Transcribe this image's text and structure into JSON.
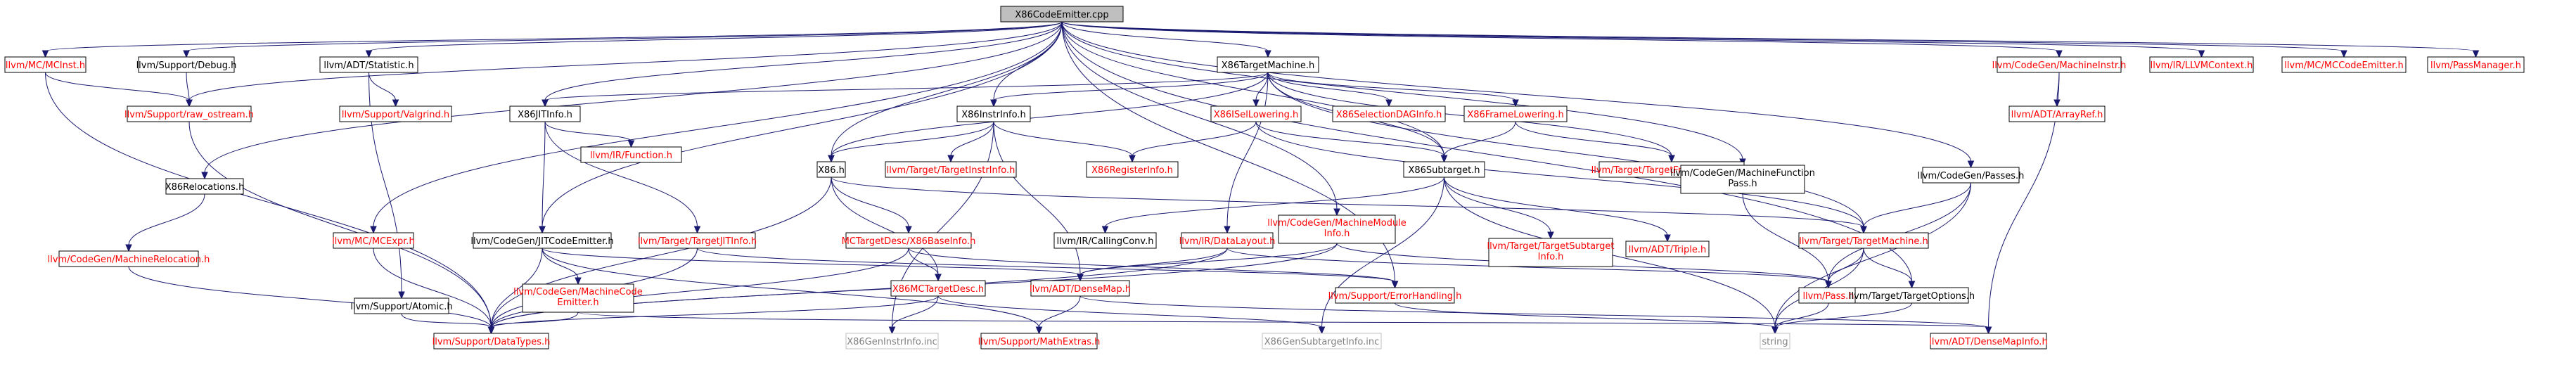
{
  "colors": {
    "edge": "#191970",
    "link_text": "#ff0000",
    "plain_text": "#000000",
    "disabled_text": "#808080",
    "root_fill": "#bfbfbf",
    "box_fill": "#ffffff",
    "box_stroke_normal": "#000000",
    "box_stroke_missing": "#bfbfbf"
  },
  "nodes": {
    "root": "X86CodeEmitter.cpp",
    "mcinst": "llvm/MC/MCInst.h",
    "debug": "llvm/Support/Debug.h",
    "statistic": "llvm/ADT/Statistic.h",
    "relocs": "X86Relocations.h",
    "jitinfo": "X86JITInfo.h",
    "tm": "X86TargetMachine.h",
    "instrinfo": "X86InstrInfo.h",
    "isel": "X86ISelLowering.h",
    "seldag": "X86SelectionDAGInfo.h",
    "framelow": "X86FrameLowering.h",
    "ostream": "llvm/Support/raw_ostream.h",
    "valgrind": "llvm/Support/Valgrind.h",
    "function": "llvm/IR/Function.h",
    "x86h": "X86.h",
    "targetinstrinfo": "llvm/Target/TargetInstrInfo.h",
    "reginfo": "X86RegisterInfo.h",
    "subtarget": "X86Subtarget.h",
    "tgtframe": "llvm/Target/TargetFrameLowering.h",
    "mfpass_l1": "llvm/CodeGen/MachineFunction",
    "mfpass_l2": "Pass.h",
    "passes": "llvm/CodeGen/Passes.h",
    "machineinstr": "llvm/CodeGen/MachineInstr.h",
    "arrayref": "llvm/ADT/ArrayRef.h",
    "llvmctx": "llvm/IR/LLVMContext.h",
    "mccodeemitter": "llvm/MC/MCCodeEmitter.h",
    "passmanager": "llvm/PassManager.h",
    "machreloc": "llvm/CodeGen/MachineRelocation.h",
    "mcexpr": "llvm/MC/MCExpr.h",
    "jitcodeemitter": "llvm/CodeGen/JITCodeEmitter.h",
    "tgtjitinfo": "llvm/Target/TargetJITInfo.h",
    "mctgtbase": "MCTargetDesc/X86BaseInfo.h",
    "callingconv": "llvm/IR/CallingConv.h",
    "modinfo_l1": "llvm/CodeGen/MachineModule",
    "modinfo_l2": "Info.h",
    "datalayout": "llvm/IR/DataLayout.h",
    "tgtsub_l1": "llvm/Target/TargetSubtarget",
    "tgtsub_l2": "Info.h",
    "triple": "llvm/ADT/Triple.h",
    "targetmachine": "llvm/Target/TargetMachine.h",
    "atomic": "llvm/Support/Atomic.h",
    "mcemit_l1": "llvm/CodeGen/MachineCode",
    "mcemit_l2": "Emitter.h",
    "mctgtdesc": "X86MCTargetDesc.h",
    "densemap": "llvm/ADT/DenseMap.h",
    "errhandling": "llvm/Support/ErrorHandling.h",
    "pass": "llvm/Pass.h",
    "tgtoptions": "llvm/Target/TargetOptions.h",
    "datatypes": "llvm/Support/DataTypes.h",
    "geninstrinfo": "X86GenInstrInfo.inc",
    "mathextras": "llvm/Support/MathExtras.h",
    "gensubtarget": "X86GenSubtargetInfo.inc",
    "string": "string",
    "densemapinfo": "llvm/ADT/DenseMapInfo.h"
  }
}
